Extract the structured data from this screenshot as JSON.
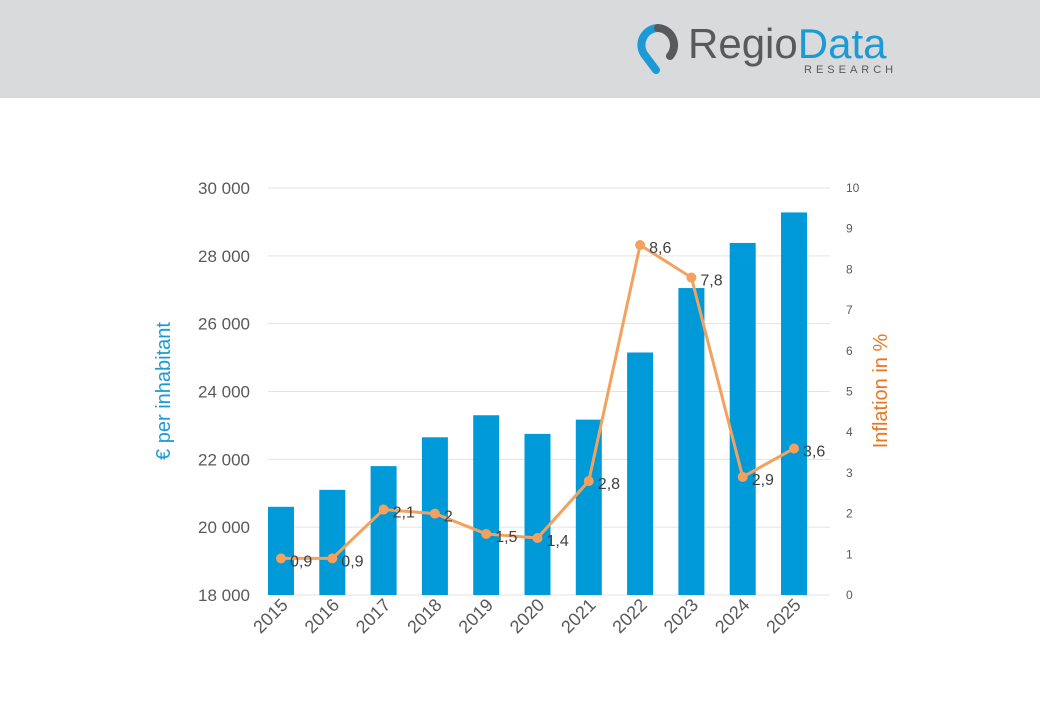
{
  "logo": {
    "part1": "Regio",
    "part2": "Data",
    "sub": "RESEARCH"
  },
  "chart_data": {
    "type": "bar+line",
    "categories": [
      "2015",
      "2016",
      "2017",
      "2018",
      "2019",
      "2020",
      "2021",
      "2022",
      "2023",
      "2024",
      "2025"
    ],
    "series": [
      {
        "name": "€ per inhabitant",
        "type": "bar",
        "axis": "left",
        "color": "#009ad9",
        "values": [
          20600,
          21100,
          21800,
          22650,
          23300,
          22750,
          23170,
          25150,
          27050,
          28380,
          29280
        ]
      },
      {
        "name": "Inflation in %",
        "type": "line",
        "axis": "right",
        "color": "#f4a15d",
        "values": [
          0.9,
          0.9,
          2.1,
          2,
          1.5,
          1.4,
          2.8,
          8.6,
          7.8,
          2.9,
          3.6
        ],
        "labels": [
          "0,9",
          "0,9",
          "2,1",
          "2",
          "1,5",
          "1,4",
          "2,8",
          "8,6",
          "7,8",
          "2,9",
          "3,6"
        ]
      }
    ],
    "ylabel": "€ per inhabitant",
    "y2label": "Inflation in %",
    "ylim": [
      18000,
      30000
    ],
    "y2lim": [
      0,
      10
    ],
    "yticks": [
      "18 000",
      "20 000",
      "22 000",
      "24 000",
      "26 000",
      "28 000",
      "30 000"
    ],
    "y2ticks": [
      "0",
      "1",
      "2",
      "3",
      "4",
      "5",
      "6",
      "7",
      "8",
      "9",
      "10"
    ],
    "grid": true
  }
}
